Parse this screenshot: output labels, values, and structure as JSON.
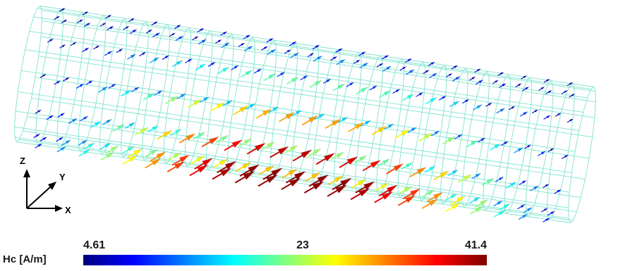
{
  "colorbar": {
    "title": "Hc [A/m]",
    "min_label": "4.61",
    "mid_label": "23",
    "max_label": "41.4",
    "min": 4.61,
    "mid": 23,
    "max": 41.4,
    "colormap": [
      "#00007f",
      "#0000ff",
      "#0080ff",
      "#00ffff",
      "#80ff80",
      "#ffff00",
      "#ff8000",
      "#ff0000",
      "#7f0000"
    ]
  },
  "triad": {
    "z": "Z",
    "y": "Y",
    "x": "X"
  },
  "mesh": {
    "color": "#7fe3cf"
  }
}
